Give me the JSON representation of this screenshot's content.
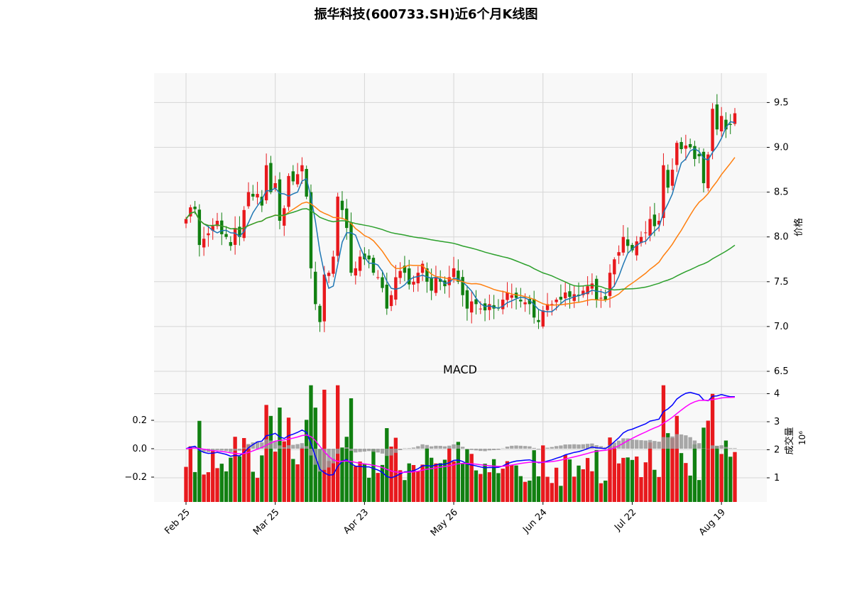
{
  "chart_data": {
    "type": "candlestick",
    "title": "振华科技(600733.SH)近6个月K线图",
    "price_panel": {
      "ylabel": "价格",
      "yticks": [
        "6.5",
        "7.0",
        "7.5",
        "8.0",
        "8.5",
        "9.0",
        "9.5"
      ],
      "ylim": [
        6.5,
        9.8
      ],
      "grid": true,
      "moving_average_colors": [
        "#1f77b4",
        "#ff7f0e",
        "#2ca02c"
      ]
    },
    "macd_panel": {
      "title": "MACD",
      "yticks": [
        "−0.2",
        "0.0",
        "0.2"
      ],
      "ylim": [
        -0.3,
        0.4
      ],
      "line_colors": {
        "macd": "#0000ff",
        "signal": "#ff00ff"
      },
      "hist_color": "#999999"
    },
    "volume_panel": {
      "ylabel": "成交量",
      "exponent": "10⁶",
      "yticks": [
        "1",
        "2",
        "3",
        "4"
      ],
      "ylim": [
        0.2,
        4.6
      ],
      "up_color": "#e8191d",
      "down_color": "#118011"
    },
    "x_tick_labels": [
      "Feb 25",
      "Mar 25",
      "Apr 23",
      "May 26",
      "Jun 24",
      "Jul 22",
      "Aug 19"
    ],
    "x_tick_indices": [
      0,
      20,
      40,
      60,
      80,
      100,
      120
    ],
    "series": {
      "close": [
        8.2,
        8.33,
        8.31,
        7.91,
        7.98,
        8.04,
        8.12,
        8.18,
        8.03,
        8.0,
        7.9,
        8.1,
        8.0,
        8.3,
        8.5,
        8.45,
        8.48,
        8.35,
        8.8,
        8.5,
        8.6,
        8.18,
        8.32,
        8.68,
        8.62,
        8.7,
        8.8,
        8.45,
        7.65,
        7.25,
        7.05,
        7.58,
        7.6,
        7.78,
        8.45,
        8.3,
        8.1,
        7.6,
        7.65,
        7.78,
        7.75,
        7.75,
        7.6,
        7.55,
        7.43,
        7.2,
        7.35,
        7.55,
        7.62,
        7.6,
        7.47,
        7.5,
        7.6,
        7.7,
        7.5,
        7.4,
        7.55,
        7.5,
        7.45,
        7.55,
        7.65,
        7.5,
        7.35,
        7.2,
        7.28,
        7.25,
        7.2,
        7.18,
        7.25,
        7.2,
        7.2,
        7.3,
        7.38,
        7.35,
        7.32,
        7.28,
        7.27,
        7.25,
        7.1,
        7.05,
        7.18,
        7.25,
        7.25,
        7.3,
        7.3,
        7.38,
        7.33,
        7.36,
        7.34,
        7.4,
        7.45,
        7.48,
        7.3,
        7.32,
        7.3,
        7.6,
        7.75,
        7.83,
        8.0,
        7.9,
        7.85,
        7.95,
        8.0,
        8.05,
        8.2,
        8.12,
        8.18,
        8.8,
        8.55,
        8.75,
        9.05,
        8.98,
        9.02,
        9.0,
        8.87,
        8.9,
        8.6,
        8.92,
        9.43,
        9.2,
        9.35,
        9.2,
        9.25,
        9.38
      ]
    }
  }
}
